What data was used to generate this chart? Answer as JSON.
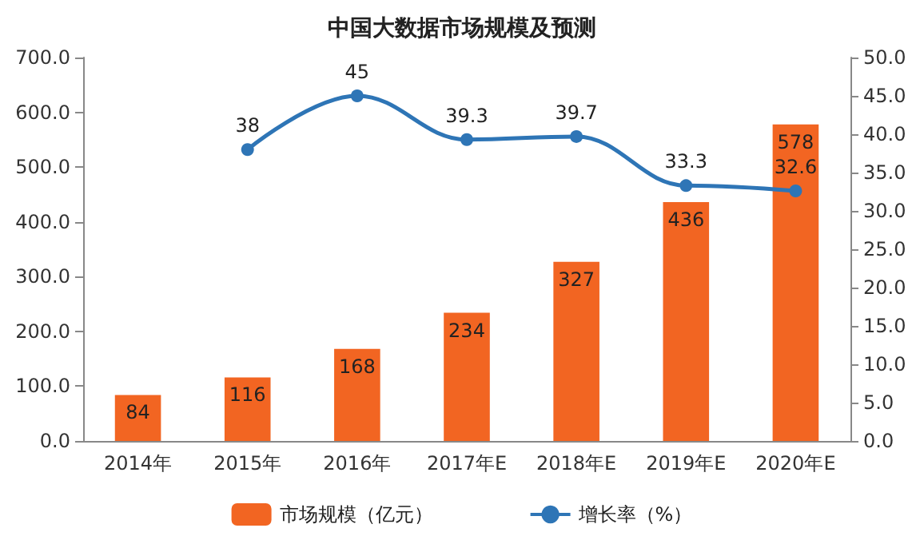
{
  "chart_data": {
    "type": "bar",
    "title": "中国大数据市场规模及预测",
    "categories": [
      "2014年",
      "2015年",
      "2016年",
      "2017年E",
      "2018年E",
      "2019年E",
      "2020年E"
    ],
    "series": [
      {
        "name": "市场规模（亿元）",
        "color": "#f26522",
        "values": [
          84,
          116,
          168,
          234,
          327,
          436,
          578
        ]
      },
      {
        "name": "增长率（%）",
        "type": "line",
        "axis": "y2",
        "color": "#2e75b6",
        "values": [
          null,
          38,
          45,
          39.3,
          39.7,
          33.3,
          32.6
        ]
      }
    ],
    "ylim": [
      0,
      700
    ],
    "yticks": [
      {
        "value": 0,
        "label": "0.0"
      },
      {
        "value": 100,
        "label": "100.0"
      },
      {
        "value": 200,
        "label": "200.0"
      },
      {
        "value": 300,
        "label": "300.0"
      },
      {
        "value": 400,
        "label": "400.0"
      },
      {
        "value": 500,
        "label": "500.0"
      },
      {
        "value": 600,
        "label": "600.0"
      },
      {
        "value": 700,
        "label": "700.0"
      }
    ],
    "y2lim": [
      0,
      50
    ],
    "y2ticks": [
      {
        "value": 0,
        "label": "0.0"
      },
      {
        "value": 5,
        "label": "5.0"
      },
      {
        "value": 10,
        "label": "10.0"
      },
      {
        "value": 15,
        "label": "15.0"
      },
      {
        "value": 20,
        "label": "20.0"
      },
      {
        "value": 25,
        "label": "25.0"
      },
      {
        "value": 30,
        "label": "30.0"
      },
      {
        "value": 35,
        "label": "35.0"
      },
      {
        "value": 40,
        "label": "40.0"
      },
      {
        "value": 45,
        "label": "45.0"
      },
      {
        "value": 50,
        "label": "50.0"
      }
    ],
    "data_labels": true,
    "legend": "bottom",
    "grid": false,
    "marker": "circle"
  }
}
